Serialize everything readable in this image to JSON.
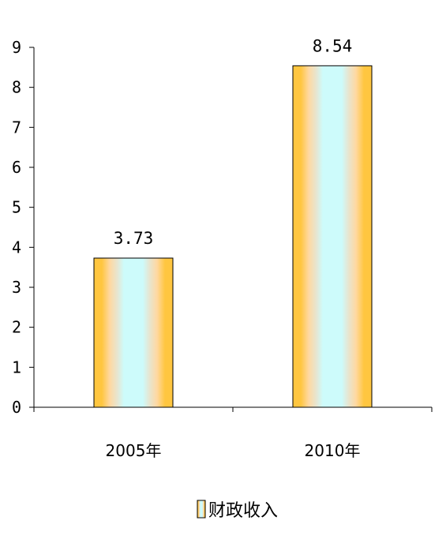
{
  "chart_data": {
    "type": "bar",
    "categories": [
      "2005年",
      "2010年"
    ],
    "series": [
      {
        "name": "财政收入",
        "values": [
          3.73,
          8.54
        ]
      }
    ],
    "data_labels": [
      "3.73",
      "8.54"
    ],
    "ylim": [
      0,
      9
    ],
    "yticks": [
      "0",
      "1",
      "2",
      "3",
      "4",
      "5",
      "6",
      "7",
      "8",
      "9"
    ],
    "grid": false,
    "legend_position": "bottom"
  }
}
